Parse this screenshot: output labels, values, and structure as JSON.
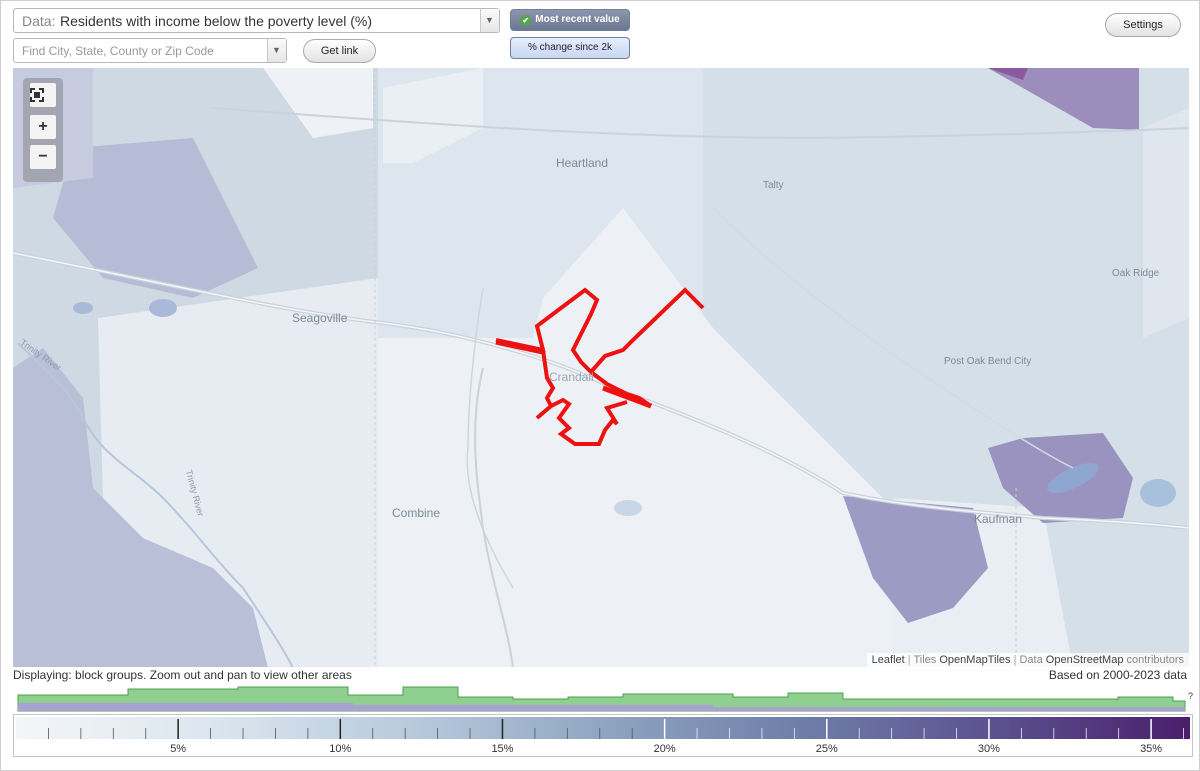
{
  "controls": {
    "data_prefix": "Data:",
    "data_value": "Residents with income below the poverty level (%)",
    "search_placeholder": "Find City, State, County or Zip Code",
    "get_link": "Get link",
    "most_recent": "Most recent value",
    "change_since": "% change since 2k",
    "settings": "Settings"
  },
  "map": {
    "zoom_in": "+",
    "zoom_out": "−",
    "labels": {
      "heartland": "Heartland",
      "talty": "Talty",
      "oak_ridge": "Oak Ridge",
      "seagoville": "Seagoville",
      "post_oak_bend": "Post Oak Bend City",
      "combine": "Combine",
      "kaufman": "Kaufman",
      "crandall": "Crandall",
      "trinity_river_1": "Trinity River",
      "trinity_river_2": "Trinity River"
    },
    "attribution": {
      "leaflet": "Leaflet",
      "tiles_prefix": "Tiles",
      "tiles": "OpenMapTiles",
      "data_prefix": "Data",
      "data": "OpenStreetMap",
      "contributors": "contributors"
    },
    "colors": {
      "highlight": "#ee1111",
      "low": "#eef2f5",
      "mid": "#a7b6cc",
      "high": "#7f6aa0"
    }
  },
  "footer": {
    "displaying": "Displaying: block groups. Zoom out and pan to view other areas",
    "based_on": "Based on 2000-2023 data",
    "histogram_question": "?"
  },
  "legend": {
    "ticks": [
      "5%",
      "10%",
      "15%",
      "20%",
      "25%",
      "30%",
      "35%"
    ],
    "min": 0,
    "max": 36.2,
    "colors": [
      "#f3f6f8",
      "#dbe5ee",
      "#b7c9dc",
      "#8fa5c2",
      "#6e7ea8",
      "#5a4f8e",
      "#4a1f6b"
    ]
  }
}
